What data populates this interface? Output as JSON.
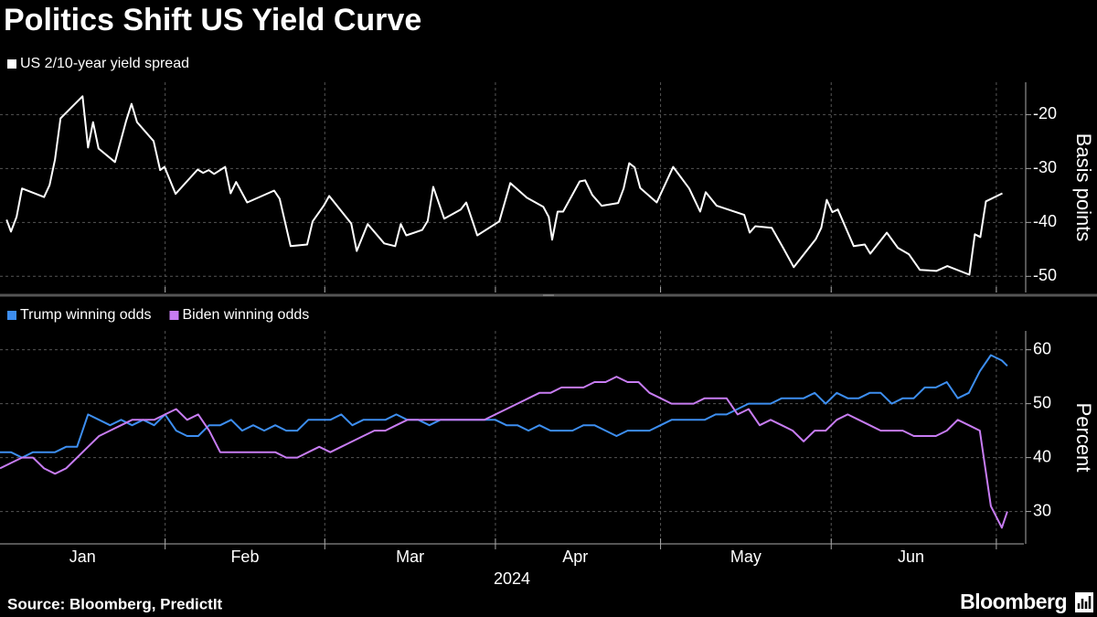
{
  "title": "Politics Shift US Yield Curve",
  "source": "Source: Bloomberg, PredictIt",
  "brand": "Bloomberg",
  "chart_data": [
    {
      "type": "line",
      "ylabel": "Basis points",
      "grid": true,
      "xlim": [
        2,
        188
      ],
      "xgrid": [
        32,
        61,
        92,
        122,
        153,
        183
      ],
      "ylim": [
        -53,
        -14
      ],
      "yticks": [
        -20,
        -30,
        -40,
        -50
      ],
      "x": [
        3.2,
        4,
        5,
        6,
        10,
        11,
        12,
        13,
        17,
        18,
        18.9,
        19.9,
        22.9,
        24.9,
        25.9,
        26.9,
        29.9,
        31.1,
        31.9,
        33.9,
        37.9,
        38.9,
        39.9,
        40.9,
        42.9,
        43.9,
        44.9,
        46.9,
        51.8,
        52.8,
        54.8,
        57.8,
        58.8,
        60.8,
        61.8,
        65.8,
        66.8,
        68.8,
        71.8,
        73.8,
        74.8,
        75.8,
        78.7,
        79.7,
        80.7,
        82.7,
        85.7,
        86.7,
        88.7,
        92.7,
        94.7,
        97.7,
        100.7,
        101.7,
        102.3,
        103.3,
        104.3,
        107.3,
        108.3,
        109.6,
        111.3,
        114.3,
        115.3,
        116.3,
        117.3,
        118.3,
        121.3,
        124.3,
        127.2,
        129.2,
        130.2,
        132.2,
        137.2,
        138.2,
        139.2,
        142.2,
        144.2,
        146.2,
        150.2,
        151.2,
        152.2,
        153.2,
        154.2,
        157.1,
        159.1,
        160.1,
        163.1,
        165.1,
        167.1,
        169.1,
        172.1,
        174.1,
        178.1,
        179.1,
        180.1,
        181.1,
        184.1
      ],
      "series": [
        {
          "name": "US 2/10-year yield spread",
          "color": "#ffffff",
          "values": [
            -39.5,
            -41.7,
            -39.0,
            -33.7,
            -35.3,
            -33.1,
            -28.3,
            -20.7,
            -16.6,
            -26.1,
            -21.4,
            -26.3,
            -28.8,
            -21.2,
            -18.0,
            -21.4,
            -24.9,
            -30.3,
            -29.7,
            -34.7,
            -30.2,
            -30.8,
            -30.3,
            -31.0,
            -29.7,
            -34.6,
            -32.5,
            -36.3,
            -34.1,
            -35.6,
            -44.4,
            -44.1,
            -39.8,
            -36.9,
            -35.1,
            -40.2,
            -45.3,
            -40.3,
            -43.9,
            -44.4,
            -40.3,
            -42.4,
            -41.4,
            -39.7,
            -33.4,
            -39.3,
            -37.6,
            -36.3,
            -42.4,
            -39.8,
            -32.7,
            -35.4,
            -37.1,
            -39.0,
            -43.2,
            -38.0,
            -38.0,
            -32.4,
            -32.2,
            -34.9,
            -36.9,
            -36.4,
            -33.7,
            -29.0,
            -29.8,
            -33.6,
            -36.3,
            -29.7,
            -33.7,
            -38.0,
            -34.4,
            -36.9,
            -38.6,
            -41.9,
            -40.7,
            -41.0,
            -44.6,
            -48.3,
            -43.1,
            -41.0,
            -35.8,
            -38.1,
            -37.6,
            -44.4,
            -44.1,
            -45.8,
            -41.9,
            -44.7,
            -45.9,
            -48.8,
            -49.0,
            -48.1,
            -49.7,
            -42.2,
            -42.7,
            -36.1,
            -34.6
          ]
        }
      ]
    },
    {
      "type": "line",
      "ylabel": "Percent",
      "xlabel": "2024",
      "grid": true,
      "xlim": [
        2,
        188
      ],
      "xgrid": [
        32,
        61,
        92,
        122,
        153,
        183
      ],
      "xticks": [
        {
          "value": 17,
          "label": "Jan"
        },
        {
          "value": 46.5,
          "label": "Feb"
        },
        {
          "value": 76.5,
          "label": "Mar"
        },
        {
          "value": 106.5,
          "label": "Apr"
        },
        {
          "value": 137.5,
          "label": "May"
        },
        {
          "value": 167.5,
          "label": "Jun"
        }
      ],
      "ylim": [
        24,
        63.5
      ],
      "yticks": [
        30,
        40,
        50,
        60
      ],
      "x": [
        2,
        4,
        6,
        8,
        10,
        12,
        14,
        16,
        18,
        20,
        22,
        24,
        26,
        28,
        30,
        32,
        34,
        36,
        38,
        40,
        42,
        44,
        46,
        48,
        50,
        52,
        54,
        56,
        58,
        60,
        62,
        64,
        66,
        68,
        70,
        72,
        74,
        76,
        78,
        80,
        82,
        84,
        86,
        88,
        90,
        92,
        94,
        96,
        98,
        100,
        102,
        104,
        106,
        108,
        110,
        112,
        114,
        116,
        118,
        120,
        122,
        124,
        126,
        128,
        130,
        132,
        134,
        136,
        138,
        140,
        142,
        144,
        146,
        148,
        150,
        152,
        154,
        156,
        158,
        160,
        162,
        164,
        166,
        168,
        170,
        172,
        174,
        176,
        178,
        180,
        182,
        184,
        185
      ],
      "series": [
        {
          "name": "Trump winning odds",
          "color": "#3d8ef0",
          "values": [
            41,
            41,
            40,
            41,
            41,
            41,
            42,
            42,
            48,
            47,
            46,
            47,
            46,
            47,
            46,
            48,
            45,
            44,
            44,
            46,
            46,
            47,
            45,
            46,
            45,
            46,
            45,
            45,
            47,
            47,
            47,
            48,
            46,
            47,
            47,
            47,
            48,
            47,
            47,
            46,
            47,
            47,
            47,
            47,
            47,
            47,
            46,
            46,
            45,
            46,
            45,
            45,
            45,
            46,
            46,
            45,
            44,
            45,
            45,
            45,
            46,
            47,
            47,
            47,
            47,
            48,
            48,
            49,
            50,
            50,
            50,
            51,
            51,
            51,
            52,
            50,
            52,
            51,
            51,
            52,
            52,
            50,
            51,
            51,
            53,
            53,
            54,
            51,
            52,
            56,
            59,
            58,
            57
          ]
        },
        {
          "name": "Biden winning odds",
          "color": "#c77cf2",
          "values": [
            38,
            39,
            40,
            40,
            38,
            37,
            38,
            40,
            42,
            44,
            45,
            46,
            47,
            47,
            47,
            48,
            49,
            47,
            48,
            45,
            41,
            41,
            41,
            41,
            41,
            41,
            40,
            40,
            41,
            42,
            41,
            42,
            43,
            44,
            45,
            45,
            46,
            47,
            47,
            47,
            47,
            47,
            47,
            47,
            47,
            48,
            49,
            50,
            51,
            52,
            52,
            53,
            53,
            53,
            54,
            54,
            55,
            54,
            54,
            52,
            51,
            50,
            50,
            50,
            51,
            51,
            51,
            48,
            49,
            46,
            47,
            46,
            45,
            43,
            45,
            45,
            47,
            48,
            47,
            46,
            45,
            45,
            45,
            44,
            44,
            44,
            45,
            47,
            46,
            45,
            31,
            27,
            30
          ]
        }
      ]
    }
  ]
}
